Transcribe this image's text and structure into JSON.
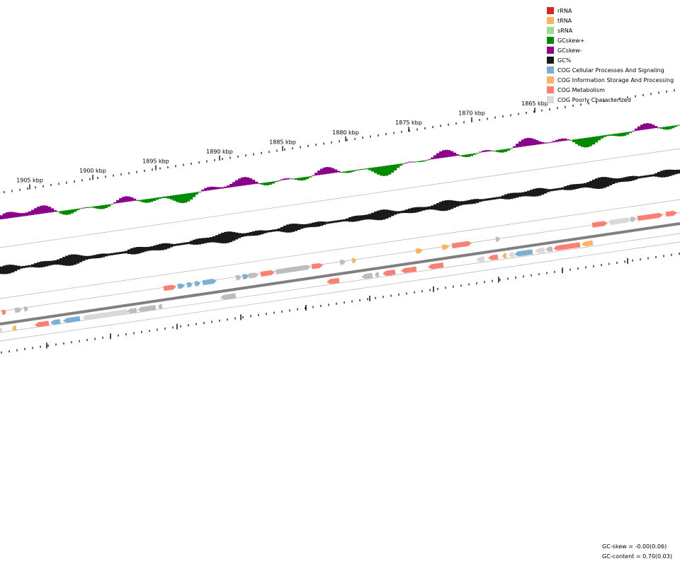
{
  "legend": [
    {
      "label": "rRNA",
      "color": "#d62728"
    },
    {
      "label": "tRNA",
      "color": "#fdb462"
    },
    {
      "label": "sRNA",
      "color": "#a1d99b"
    },
    {
      "label": "GCskew+",
      "color": "#008a00"
    },
    {
      "label": "GCskew-",
      "color": "#8b008b"
    },
    {
      "label": "GC%",
      "color": "#1a1a1a"
    },
    {
      "label": "COG Cellular Processes And Signaling",
      "color": "#7bafd4"
    },
    {
      "label": "COG Information Storage And Processing",
      "color": "#fdb462"
    },
    {
      "label": "COG Metabolism",
      "color": "#fb8072"
    },
    {
      "label": "COG Poorly Characterized",
      "color": "#d9d9d9"
    }
  ],
  "kbp_labels": [
    "1905 kbp",
    "1900 kbp",
    "1895 kbp",
    "1890 kbp",
    "1885 kbp",
    "1880 kbp",
    "1875 kbp",
    "1870 kbp",
    "1865 kbp"
  ],
  "stats": {
    "gc_skew": "GC-skew = -0.00(0.06)",
    "gc_content": "GC-content = 0.70(0.03)"
  },
  "colors": {
    "skew_pos": "#008a00",
    "skew_neg": "#8b008b",
    "gc": "#1a1a1a",
    "backbone": "#808080",
    "ring": "#b0b0b0",
    "cog_cps": "#7bafd4",
    "cog_isp": "#fdb462",
    "cog_met": "#fb8072",
    "cog_poor": "#d9d9d9",
    "gene_grey": "#bdbdbd",
    "gene_grey_dark": "#a6a6a6"
  }
}
